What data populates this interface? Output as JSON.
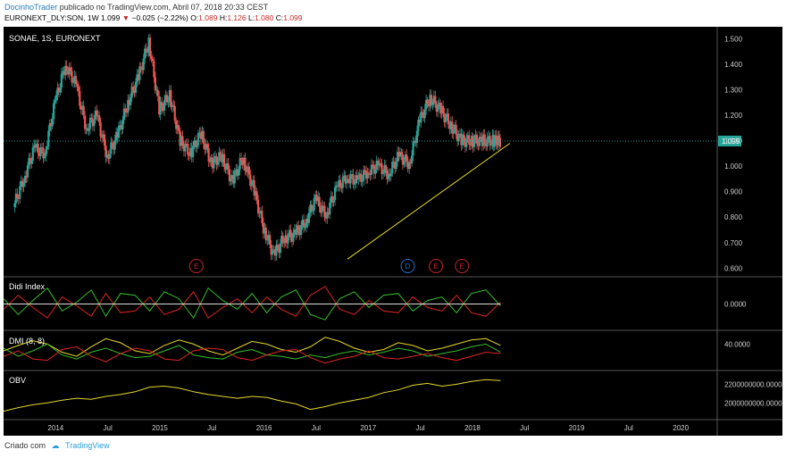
{
  "header": {
    "author": "DocinhoTrader",
    "published": "publicado no TradingView.com, Abril 07, 2018 20:33 CEST",
    "symbol": "EURONEXT_DLY:SON, 1W",
    "last": "1.099",
    "change": "−0.025 (−2.22%)",
    "o_label": "O:",
    "o": "1.089",
    "h_label": "H:",
    "h": "1.126",
    "l_label": "L:",
    "l": "1.080",
    "c_label": "C:",
    "c": "1.099"
  },
  "footer": {
    "created_with": "Criado com",
    "brand": "TradingView"
  },
  "colors": {
    "background": "#000000",
    "up": "#26a69a",
    "down": "#ef5350",
    "trendline": "#e6d82a",
    "green_line": "#34c02a",
    "red_line": "#e02424",
    "yellow_line": "#e6d82a",
    "price_badge": "#26a69a",
    "event_red": "#c62828",
    "event_blue": "#2a6fc9"
  },
  "chart_data": [
    {
      "type": "candlestick",
      "title": "SONAE, 1S, EURONEXT",
      "ylim": [
        0.58,
        1.53
      ],
      "y_ticks": [
        "1.500",
        "1.400",
        "1.300",
        "1.200",
        "1.100",
        "1.000",
        "0.900",
        "0.800",
        "0.700",
        "0.600"
      ],
      "current_price": "1.099",
      "close_series": {
        "x": [
          2013.6,
          2013.7,
          2013.8,
          2013.9,
          2014.0,
          2014.1,
          2014.2,
          2014.3,
          2014.4,
          2014.5,
          2014.6,
          2014.7,
          2014.8,
          2014.9,
          2015.0,
          2015.1,
          2015.2,
          2015.3,
          2015.4,
          2015.5,
          2015.6,
          2015.7,
          2015.8,
          2015.9,
          2016.0,
          2016.1,
          2016.2,
          2016.3,
          2016.4,
          2016.5,
          2016.6,
          2016.7,
          2016.8,
          2016.9,
          2017.0,
          2017.1,
          2017.2,
          2017.3,
          2017.4,
          2017.5,
          2017.6,
          2017.7,
          2017.8,
          2017.9,
          2018.0,
          2018.1,
          2018.2,
          2018.27
        ],
        "values": [
          0.84,
          0.95,
          1.07,
          1.05,
          1.25,
          1.4,
          1.32,
          1.15,
          1.2,
          1.04,
          1.12,
          1.25,
          1.35,
          1.49,
          1.22,
          1.28,
          1.1,
          1.05,
          1.13,
          1.01,
          1.04,
          0.94,
          1.03,
          0.92,
          0.76,
          0.65,
          0.72,
          0.73,
          0.78,
          0.87,
          0.81,
          0.91,
          0.96,
          0.94,
          0.98,
          1.0,
          0.97,
          1.04,
          1.01,
          1.18,
          1.27,
          1.22,
          1.16,
          1.1,
          1.1,
          1.1,
          1.1,
          1.099
        ]
      },
      "trendline": {
        "from": {
          "x": 2016.8,
          "y": 0.635
        },
        "to": {
          "x": 2018.36,
          "y": 1.09
        }
      },
      "events": [
        {
          "label": "E",
          "x": 2015.35
        },
        {
          "label": "D",
          "x": 2017.38
        },
        {
          "label": "E",
          "x": 2017.65
        },
        {
          "label": "E",
          "x": 2017.9
        }
      ]
    },
    {
      "type": "line",
      "title": "Didi Index",
      "y_ticks": [
        "0.0000"
      ],
      "series": [
        {
          "name": "",
          "color": "green",
          "values": [
            0.3,
            -0.6,
            0.2,
            0.9,
            -0.4,
            0.1,
            0.8,
            -0.7,
            0.6,
            0.5,
            -0.4,
            0.7,
            0.3,
            -0.8,
            0.9,
            0.2,
            -0.3,
            0.6,
            -0.5,
            0.4,
            0.8,
            -0.6,
            -0.9,
            0.3,
            0.7,
            -0.2,
            0.5,
            0.6,
            -0.4,
            0.2,
            0.4,
            -0.5,
            0.6,
            0.8,
            -0.1
          ]
        },
        {
          "name": "",
          "color": "red",
          "values": [
            -0.3,
            0.5,
            -0.2,
            -0.8,
            0.4,
            -0.1,
            -0.7,
            0.6,
            -0.5,
            -0.4,
            0.4,
            -0.6,
            -0.3,
            0.7,
            -0.8,
            -0.2,
            0.3,
            -0.5,
            0.4,
            -0.3,
            -0.7,
            0.5,
            1.0,
            -0.3,
            -0.6,
            0.2,
            -0.4,
            -0.5,
            0.4,
            -0.2,
            -0.4,
            0.5,
            -0.5,
            -0.7,
            0.1
          ]
        }
      ]
    },
    {
      "type": "line",
      "title": "DMI (8, 8)",
      "y_ticks": [
        "40.0000"
      ],
      "series": [
        {
          "name": "",
          "color": "yellow",
          "values": [
            30,
            38,
            45,
            40,
            28,
            22,
            36,
            48,
            42,
            30,
            26,
            38,
            46,
            40,
            30,
            24,
            34,
            44,
            40,
            32,
            28,
            36,
            50,
            44,
            34,
            28,
            32,
            42,
            38,
            30,
            34,
            40,
            46,
            48,
            38
          ]
        },
        {
          "name": "",
          "color": "green",
          "values": [
            34,
            22,
            30,
            40,
            24,
            18,
            28,
            34,
            26,
            20,
            22,
            30,
            38,
            24,
            20,
            18,
            28,
            32,
            24,
            22,
            18,
            24,
            20,
            26,
            30,
            24,
            28,
            34,
            30,
            22,
            26,
            30,
            36,
            40,
            28
          ]
        },
        {
          "name": "",
          "color": "red",
          "values": [
            22,
            30,
            18,
            16,
            32,
            36,
            22,
            14,
            26,
            34,
            30,
            18,
            16,
            30,
            34,
            32,
            20,
            16,
            24,
            30,
            32,
            20,
            12,
            18,
            22,
            30,
            20,
            18,
            22,
            26,
            20,
            16,
            22,
            28,
            26
          ]
        }
      ]
    },
    {
      "type": "line",
      "title": "OBV",
      "y_ticks": [
        "2200000000.0000",
        "2000000000.0000"
      ],
      "series": [
        {
          "name": "",
          "color": "yellow",
          "values": [
            1.91,
            1.95,
            1.98,
            2.0,
            2.03,
            2.05,
            2.04,
            2.07,
            2.09,
            2.12,
            2.17,
            2.18,
            2.16,
            2.12,
            2.09,
            2.07,
            2.05,
            2.07,
            2.06,
            2.02,
            1.99,
            1.93,
            1.96,
            2.0,
            2.03,
            2.06,
            2.11,
            2.14,
            2.19,
            2.21,
            2.18,
            2.2,
            2.23,
            2.25,
            2.24
          ]
        }
      ]
    },
    {
      "type": "axis",
      "x_ticks": [
        "2014",
        "Jul",
        "2015",
        "Jul",
        "2016",
        "Jul",
        "2017",
        "Jul",
        "2018",
        "Jul",
        "2019",
        "Jul",
        "2020"
      ]
    }
  ]
}
